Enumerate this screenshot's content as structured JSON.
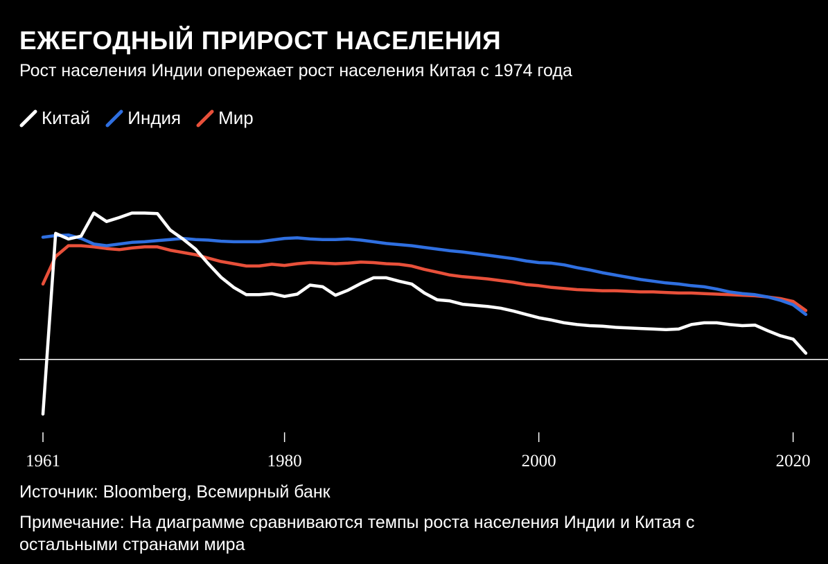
{
  "chart_data": {
    "type": "line",
    "title": "ЕЖЕГОДНЫЙ ПРИРОСТ НАСЕЛЕНИЯ",
    "subtitle": "Рост населения Индии опережает рост населения Китая с 1974 года",
    "xlabel": "",
    "ylabel": "",
    "xlim": [
      1961,
      2021
    ],
    "ylim": [
      -1.0,
      3.0
    ],
    "x_ticks": [
      "1961",
      "1980",
      "2000",
      "2020"
    ],
    "x": [
      1961,
      1962,
      1963,
      1964,
      1965,
      1966,
      1967,
      1968,
      1969,
      1970,
      1971,
      1972,
      1973,
      1974,
      1975,
      1976,
      1977,
      1978,
      1979,
      1980,
      1981,
      1982,
      1983,
      1984,
      1985,
      1986,
      1987,
      1988,
      1989,
      1990,
      1991,
      1992,
      1993,
      1994,
      1995,
      1996,
      1997,
      1998,
      1999,
      2000,
      2001,
      2002,
      2003,
      2004,
      2005,
      2006,
      2007,
      2008,
      2009,
      2010,
      2011,
      2012,
      2013,
      2014,
      2015,
      2016,
      2017,
      2018,
      2019,
      2020,
      2021
    ],
    "series": [
      {
        "name": "Китай",
        "color": "#ffffff",
        "values": [
          -0.97,
          2.24,
          2.14,
          2.19,
          2.6,
          2.45,
          2.52,
          2.6,
          2.6,
          2.59,
          2.3,
          2.14,
          1.96,
          1.7,
          1.46,
          1.28,
          1.15,
          1.15,
          1.17,
          1.12,
          1.16,
          1.32,
          1.29,
          1.14,
          1.23,
          1.35,
          1.45,
          1.45,
          1.39,
          1.34,
          1.18,
          1.06,
          1.04,
          0.98,
          0.96,
          0.94,
          0.91,
          0.86,
          0.8,
          0.74,
          0.7,
          0.65,
          0.62,
          0.6,
          0.59,
          0.57,
          0.56,
          0.55,
          0.54,
          0.53,
          0.54,
          0.62,
          0.65,
          0.65,
          0.62,
          0.6,
          0.61,
          0.51,
          0.42,
          0.36,
          0.11
        ]
      },
      {
        "name": "Индия",
        "color": "#2f6fe0",
        "values": [
          2.17,
          2.2,
          2.21,
          2.15,
          2.05,
          2.02,
          2.05,
          2.08,
          2.09,
          2.11,
          2.13,
          2.15,
          2.13,
          2.12,
          2.1,
          2.09,
          2.09,
          2.09,
          2.12,
          2.15,
          2.16,
          2.14,
          2.13,
          2.13,
          2.14,
          2.12,
          2.09,
          2.06,
          2.04,
          2.02,
          1.99,
          1.96,
          1.93,
          1.91,
          1.88,
          1.85,
          1.82,
          1.79,
          1.75,
          1.72,
          1.71,
          1.68,
          1.63,
          1.59,
          1.54,
          1.5,
          1.46,
          1.42,
          1.39,
          1.36,
          1.34,
          1.31,
          1.29,
          1.25,
          1.2,
          1.17,
          1.15,
          1.11,
          1.05,
          0.97,
          0.8
        ]
      },
      {
        "name": "Мир",
        "color": "#e8503a",
        "values": [
          1.34,
          1.83,
          2.02,
          2.02,
          2.0,
          1.97,
          1.95,
          1.98,
          2.0,
          2.0,
          1.94,
          1.9,
          1.86,
          1.8,
          1.74,
          1.7,
          1.66,
          1.66,
          1.69,
          1.67,
          1.7,
          1.72,
          1.71,
          1.7,
          1.71,
          1.73,
          1.72,
          1.7,
          1.69,
          1.66,
          1.6,
          1.55,
          1.5,
          1.47,
          1.45,
          1.43,
          1.4,
          1.37,
          1.33,
          1.31,
          1.28,
          1.26,
          1.24,
          1.23,
          1.22,
          1.22,
          1.21,
          1.2,
          1.2,
          1.19,
          1.18,
          1.18,
          1.17,
          1.16,
          1.15,
          1.14,
          1.13,
          1.11,
          1.08,
          1.03,
          0.87
        ]
      }
    ]
  },
  "legend": [
    {
      "label": "Китай",
      "color": "#ffffff"
    },
    {
      "label": "Индия",
      "color": "#2f6fe0"
    },
    {
      "label": "Мир",
      "color": "#e8503a"
    }
  ],
  "footer": {
    "source": "Источник: Bloomberg, Всемирный банк",
    "note": "Примечание: На диаграмме сравниваются темпы роста населения Индии и Китая с остальными странами мира"
  }
}
